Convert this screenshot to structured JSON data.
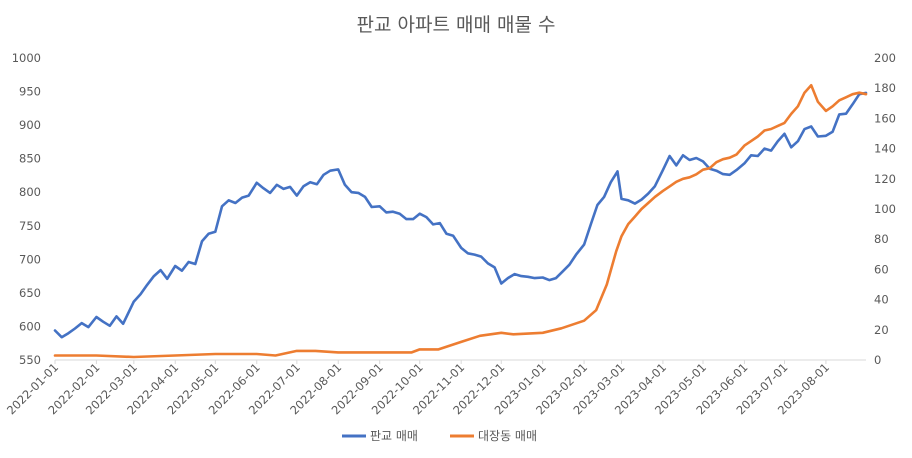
{
  "chart_data": {
    "type": "line",
    "title": "판교 아파트 매매 매물 수",
    "x_tick_labels": [
      "2022-01-01",
      "2022-02-01",
      "2022-03-01",
      "2022-04-01",
      "2022-05-01",
      "2022-06-01",
      "2022-07-01",
      "2022-08-01",
      "2022-09-01",
      "2022-10-01",
      "2022-11-01",
      "2022-12-01",
      "2023-01-01",
      "2023-02-01",
      "2023-03-01",
      "2023-04-01",
      "2023-05-01",
      "2023-06-01",
      "2023-07-01",
      "2023-08-01"
    ],
    "x_range": [
      "2022-01-01",
      "2023-08-31"
    ],
    "y_left": {
      "min": 550,
      "max": 1000,
      "ticks": [
        "550",
        "600",
        "650",
        "700",
        "750",
        "800",
        "850",
        "900",
        "950",
        "1000"
      ]
    },
    "y_right": {
      "min": 0,
      "max": 200,
      "ticks": [
        "0",
        "20",
        "40",
        "60",
        "80",
        "100",
        "120",
        "140",
        "160",
        "180",
        "200"
      ]
    },
    "grid": false,
    "legend_position": "bottom",
    "series": [
      {
        "name": "판교 매매",
        "axis": "left",
        "color": "#4472C4",
        "points": [
          [
            "2022-01-01",
            594
          ],
          [
            "2022-01-06",
            584
          ],
          [
            "2022-01-11",
            590
          ],
          [
            "2022-01-16",
            597
          ],
          [
            "2022-01-21",
            605
          ],
          [
            "2022-01-26",
            599
          ],
          [
            "2022-02-01",
            614
          ],
          [
            "2022-02-06",
            607
          ],
          [
            "2022-02-11",
            601
          ],
          [
            "2022-02-16",
            615
          ],
          [
            "2022-02-21",
            604
          ],
          [
            "2022-03-01",
            637
          ],
          [
            "2022-03-06",
            648
          ],
          [
            "2022-03-11",
            662
          ],
          [
            "2022-03-16",
            675
          ],
          [
            "2022-03-21",
            684
          ],
          [
            "2022-03-26",
            671
          ],
          [
            "2022-04-01",
            690
          ],
          [
            "2022-04-06",
            683
          ],
          [
            "2022-04-11",
            696
          ],
          [
            "2022-04-16",
            693
          ],
          [
            "2022-04-21",
            727
          ],
          [
            "2022-04-26",
            738
          ],
          [
            "2022-05-01",
            741
          ],
          [
            "2022-05-06",
            779
          ],
          [
            "2022-05-11",
            788
          ],
          [
            "2022-05-16",
            784
          ],
          [
            "2022-05-21",
            792
          ],
          [
            "2022-05-26",
            795
          ],
          [
            "2022-06-01",
            814
          ],
          [
            "2022-06-06",
            806
          ],
          [
            "2022-06-11",
            799
          ],
          [
            "2022-06-16",
            811
          ],
          [
            "2022-06-21",
            805
          ],
          [
            "2022-06-26",
            808
          ],
          [
            "2022-07-01",
            795
          ],
          [
            "2022-07-06",
            809
          ],
          [
            "2022-07-11",
            815
          ],
          [
            "2022-07-16",
            812
          ],
          [
            "2022-07-21",
            826
          ],
          [
            "2022-07-26",
            832
          ],
          [
            "2022-08-01",
            834
          ],
          [
            "2022-08-06",
            811
          ],
          [
            "2022-08-11",
            800
          ],
          [
            "2022-08-16",
            799
          ],
          [
            "2022-08-21",
            793
          ],
          [
            "2022-08-26",
            778
          ],
          [
            "2022-09-01",
            779
          ],
          [
            "2022-09-06",
            770
          ],
          [
            "2022-09-11",
            771
          ],
          [
            "2022-09-16",
            768
          ],
          [
            "2022-09-21",
            760
          ],
          [
            "2022-09-26",
            760
          ],
          [
            "2022-10-01",
            768
          ],
          [
            "2022-10-06",
            763
          ],
          [
            "2022-10-11",
            752
          ],
          [
            "2022-10-16",
            754
          ],
          [
            "2022-10-21",
            738
          ],
          [
            "2022-10-26",
            735
          ],
          [
            "2022-11-01",
            717
          ],
          [
            "2022-11-06",
            709
          ],
          [
            "2022-11-11",
            707
          ],
          [
            "2022-11-16",
            704
          ],
          [
            "2022-11-21",
            694
          ],
          [
            "2022-11-26",
            688
          ],
          [
            "2022-12-01",
            664
          ],
          [
            "2022-12-06",
            672
          ],
          [
            "2022-12-11",
            678
          ],
          [
            "2022-12-16",
            675
          ],
          [
            "2022-12-21",
            674
          ],
          [
            "2022-12-26",
            672
          ],
          [
            "2023-01-01",
            673
          ],
          [
            "2023-01-06",
            669
          ],
          [
            "2023-01-11",
            672
          ],
          [
            "2023-01-16",
            682
          ],
          [
            "2023-01-21",
            692
          ],
          [
            "2023-01-26",
            707
          ],
          [
            "2023-02-01",
            722
          ],
          [
            "2023-02-06",
            752
          ],
          [
            "2023-02-11",
            781
          ],
          [
            "2023-02-16",
            793
          ],
          [
            "2023-02-21",
            815
          ],
          [
            "2023-02-26",
            831
          ],
          [
            "2023-03-01",
            790
          ],
          [
            "2023-03-06",
            788
          ],
          [
            "2023-03-11",
            783
          ],
          [
            "2023-03-16",
            789
          ],
          [
            "2023-03-21",
            798
          ],
          [
            "2023-03-26",
            809
          ],
          [
            "2023-04-01",
            833
          ],
          [
            "2023-04-06",
            854
          ],
          [
            "2023-04-11",
            840
          ],
          [
            "2023-04-16",
            855
          ],
          [
            "2023-04-21",
            848
          ],
          [
            "2023-04-26",
            851
          ],
          [
            "2023-05-01",
            846
          ],
          [
            "2023-05-06",
            835
          ],
          [
            "2023-05-11",
            832
          ],
          [
            "2023-05-16",
            827
          ],
          [
            "2023-05-21",
            826
          ],
          [
            "2023-05-26",
            833
          ],
          [
            "2023-06-01",
            843
          ],
          [
            "2023-06-06",
            855
          ],
          [
            "2023-06-11",
            854
          ],
          [
            "2023-06-16",
            865
          ],
          [
            "2023-06-21",
            862
          ],
          [
            "2023-06-26",
            876
          ],
          [
            "2023-07-01",
            887
          ],
          [
            "2023-07-06",
            867
          ],
          [
            "2023-07-11",
            876
          ],
          [
            "2023-07-16",
            894
          ],
          [
            "2023-07-21",
            898
          ],
          [
            "2023-07-26",
            883
          ],
          [
            "2023-08-01",
            884
          ],
          [
            "2023-08-06",
            890
          ],
          [
            "2023-08-11",
            916
          ],
          [
            "2023-08-16",
            917
          ],
          [
            "2023-08-21",
            931
          ],
          [
            "2023-08-26",
            946
          ],
          [
            "2023-08-31",
            948
          ]
        ]
      },
      {
        "name": "대장동 매매",
        "axis": "right",
        "color": "#ED7D31",
        "points": [
          [
            "2022-01-01",
            3
          ],
          [
            "2022-02-01",
            3
          ],
          [
            "2022-03-01",
            2
          ],
          [
            "2022-04-01",
            3
          ],
          [
            "2022-05-01",
            4
          ],
          [
            "2022-06-01",
            4
          ],
          [
            "2022-06-15",
            3
          ],
          [
            "2022-07-01",
            6
          ],
          [
            "2022-07-15",
            6
          ],
          [
            "2022-08-01",
            5
          ],
          [
            "2022-09-01",
            5
          ],
          [
            "2022-09-25",
            5
          ],
          [
            "2022-10-01",
            7
          ],
          [
            "2022-10-15",
            7
          ],
          [
            "2022-11-01",
            12
          ],
          [
            "2022-11-15",
            16
          ],
          [
            "2022-12-01",
            18
          ],
          [
            "2022-12-10",
            17
          ],
          [
            "2023-01-01",
            18
          ],
          [
            "2023-01-15",
            21
          ],
          [
            "2023-02-01",
            26
          ],
          [
            "2023-02-10",
            33
          ],
          [
            "2023-02-18",
            50
          ],
          [
            "2023-02-25",
            72
          ],
          [
            "2023-03-01",
            82
          ],
          [
            "2023-03-06",
            90
          ],
          [
            "2023-03-11",
            95
          ],
          [
            "2023-03-16",
            100
          ],
          [
            "2023-03-21",
            104
          ],
          [
            "2023-03-26",
            108
          ],
          [
            "2023-04-01",
            112
          ],
          [
            "2023-04-06",
            115
          ],
          [
            "2023-04-11",
            118
          ],
          [
            "2023-04-16",
            120
          ],
          [
            "2023-04-21",
            121
          ],
          [
            "2023-04-26",
            123
          ],
          [
            "2023-05-01",
            126
          ],
          [
            "2023-05-06",
            127
          ],
          [
            "2023-05-11",
            131
          ],
          [
            "2023-05-16",
            133
          ],
          [
            "2023-05-21",
            134
          ],
          [
            "2023-05-26",
            136
          ],
          [
            "2023-06-01",
            142
          ],
          [
            "2023-06-06",
            145
          ],
          [
            "2023-06-11",
            148
          ],
          [
            "2023-06-16",
            152
          ],
          [
            "2023-06-21",
            153
          ],
          [
            "2023-06-26",
            155
          ],
          [
            "2023-07-01",
            157
          ],
          [
            "2023-07-06",
            163
          ],
          [
            "2023-07-11",
            168
          ],
          [
            "2023-07-16",
            177
          ],
          [
            "2023-07-21",
            182
          ],
          [
            "2023-07-26",
            171
          ],
          [
            "2023-08-01",
            165
          ],
          [
            "2023-08-06",
            168
          ],
          [
            "2023-08-11",
            172
          ],
          [
            "2023-08-16",
            174
          ],
          [
            "2023-08-21",
            176
          ],
          [
            "2023-08-26",
            177
          ],
          [
            "2023-08-31",
            176
          ]
        ]
      }
    ]
  }
}
